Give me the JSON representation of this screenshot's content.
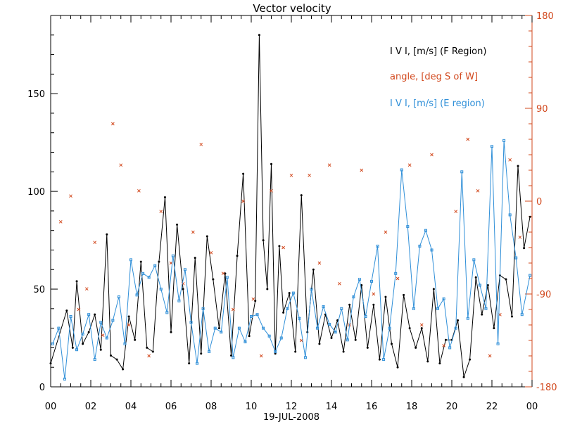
{
  "chart_data": {
    "type": "line",
    "title": "Vector velocity",
    "xlabel": "19-JUL-2008",
    "x_range_hours": [
      0,
      24
    ],
    "x_tick_labels": [
      "00",
      "02",
      "04",
      "06",
      "08",
      "10",
      "12",
      "14",
      "16",
      "18",
      "20",
      "22",
      "00"
    ],
    "ylim_left": [
      0,
      190
    ],
    "y_ticks_left": [
      "0",
      "50",
      "100",
      "150"
    ],
    "ylim_right": [
      -180,
      180
    ],
    "y_ticks_right": [
      "-180",
      "-90",
      "0",
      "90",
      "180"
    ],
    "legend_placement": "top-right",
    "series": [
      {
        "name": "I V I, [m/s] (F Region)",
        "color": "#000000",
        "axis": "left",
        "style": "line+dots",
        "x": [
          0.0,
          0.8,
          1.1,
          1.3,
          1.6,
          1.9,
          2.2,
          2.5,
          2.8,
          3.0,
          3.3,
          3.6,
          3.9,
          4.2,
          4.5,
          4.8,
          5.1,
          5.4,
          5.7,
          6.0,
          6.3,
          6.6,
          6.9,
          7.2,
          7.5,
          7.8,
          8.1,
          8.4,
          8.7,
          9.0,
          9.3,
          9.6,
          9.9,
          10.2,
          10.4,
          10.6,
          10.8,
          11.0,
          11.2,
          11.4,
          11.6,
          11.9,
          12.2,
          12.5,
          12.8,
          13.1,
          13.4,
          13.7,
          14.0,
          14.3,
          14.6,
          14.9,
          15.2,
          15.5,
          15.8,
          16.1,
          16.4,
          16.7,
          17.0,
          17.3,
          17.6,
          17.9,
          18.2,
          18.5,
          18.8,
          19.1,
          19.4,
          19.7,
          20.0,
          20.3,
          20.6,
          20.9,
          21.2,
          21.5,
          21.8,
          22.1,
          22.4,
          22.7,
          23.0,
          23.3,
          23.6,
          23.9
        ],
        "y": [
          12,
          39,
          20,
          54,
          22,
          28,
          37,
          19,
          78,
          16,
          14,
          9,
          36,
          24,
          64,
          20,
          18,
          64,
          97,
          28,
          83,
          50,
          12,
          66,
          17,
          77,
          55,
          30,
          58,
          16,
          67,
          109,
          26,
          44,
          180,
          75,
          50,
          114,
          17,
          72,
          38,
          48,
          18,
          98,
          28,
          60,
          22,
          37,
          25,
          34,
          18,
          42,
          24,
          52,
          20,
          42,
          14,
          46,
          22,
          10,
          47,
          30,
          20,
          30,
          13,
          50,
          12,
          24,
          24,
          34,
          5,
          14,
          56,
          37,
          52,
          30,
          57,
          55,
          36,
          113,
          71,
          87
        ]
      },
      {
        "name": "angle, [deg S of W]",
        "color": "#d2491e",
        "axis": "right",
        "style": "markers",
        "x": [
          0.5,
          1.0,
          1.4,
          1.8,
          2.2,
          2.6,
          3.1,
          3.5,
          3.9,
          4.4,
          4.9,
          5.5,
          6.0,
          6.6,
          7.1,
          7.5,
          8.0,
          8.6,
          9.1,
          9.6,
          10.1,
          10.5,
          11.0,
          11.6,
          12.0,
          12.5,
          12.9,
          13.4,
          13.9,
          14.4,
          14.9,
          15.5,
          16.1,
          16.7,
          17.3,
          17.9,
          18.5,
          19.0,
          19.6,
          20.2,
          20.8,
          21.3,
          21.9,
          22.4,
          22.9,
          23.4
        ],
        "y": [
          -20,
          5,
          -105,
          -85,
          -40,
          -130,
          75,
          35,
          -120,
          10,
          -150,
          -10,
          -60,
          -80,
          -30,
          55,
          -50,
          -70,
          -105,
          0,
          -95,
          -150,
          10,
          -45,
          25,
          -135,
          25,
          -60,
          35,
          -80,
          -120,
          30,
          -90,
          -30,
          -75,
          35,
          -120,
          45,
          -140,
          -10,
          60,
          10,
          -150,
          -110,
          40,
          -35
        ]
      },
      {
        "name": "I V I, [m/s] (E region)",
        "color": "#2f8fd8",
        "axis": "left",
        "style": "line+squares",
        "x": [
          0.1,
          0.4,
          0.7,
          1.0,
          1.3,
          1.6,
          1.9,
          2.2,
          2.5,
          2.8,
          3.1,
          3.4,
          3.7,
          4.0,
          4.3,
          4.6,
          4.9,
          5.2,
          5.5,
          5.8,
          6.1,
          6.4,
          6.7,
          7.0,
          7.3,
          7.6,
          7.9,
          8.2,
          8.5,
          8.8,
          9.1,
          9.4,
          9.7,
          10.0,
          10.3,
          10.6,
          10.9,
          11.2,
          11.5,
          11.8,
          12.1,
          12.4,
          12.7,
          13.0,
          13.3,
          13.6,
          13.9,
          14.2,
          14.5,
          14.8,
          15.1,
          15.4,
          15.7,
          16.0,
          16.3,
          16.6,
          16.9,
          17.2,
          17.5,
          17.8,
          18.1,
          18.4,
          18.7,
          19.0,
          19.3,
          19.6,
          19.9,
          20.2,
          20.5,
          20.8,
          21.1,
          21.4,
          21.7,
          22.0,
          22.3,
          22.6,
          22.9,
          23.2,
          23.5,
          23.9
        ],
        "y": [
          22,
          30,
          4,
          36,
          19,
          27,
          37,
          14,
          33,
          25,
          34,
          46,
          22,
          65,
          47,
          58,
          56,
          62,
          50,
          38,
          67,
          44,
          60,
          33,
          12,
          40,
          18,
          30,
          28,
          56,
          15,
          30,
          23,
          36,
          37,
          30,
          26,
          18,
          25,
          40,
          48,
          35,
          15,
          50,
          30,
          41,
          32,
          28,
          40,
          24,
          46,
          55,
          36,
          54,
          72,
          14,
          30,
          58,
          111,
          82,
          40,
          72,
          80,
          70,
          40,
          45,
          20,
          30,
          110,
          35,
          65,
          52,
          40,
          123,
          22,
          126,
          88,
          66,
          37,
          57
        ]
      }
    ]
  }
}
